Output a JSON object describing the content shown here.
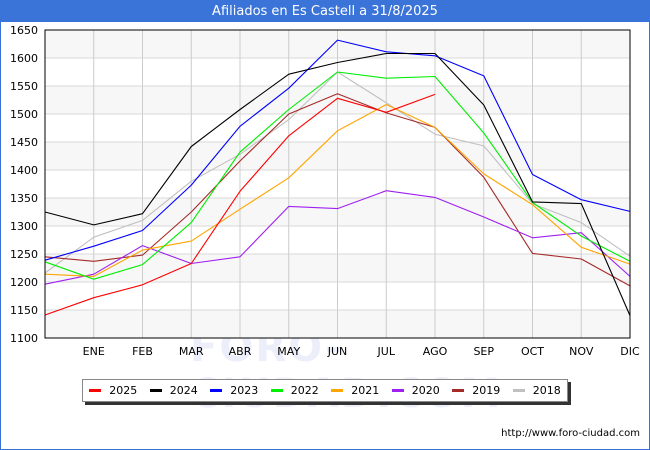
{
  "header": {
    "title": "Afiliados en Es Castell a 31/8/2025"
  },
  "watermark": "FORO-CIUDAD.COM",
  "footer": {
    "url": "http://www.foro-ciudad.com"
  },
  "chart_data": {
    "type": "line",
    "title": "Afiliados en Es Castell a 31/8/2025",
    "xlabel": "",
    "ylabel": "",
    "x": [
      "",
      "ENE",
      "FEB",
      "MAR",
      "ABR",
      "MAY",
      "JUN",
      "JUL",
      "AGO",
      "SEP",
      "OCT",
      "NOV",
      "DIC"
    ],
    "ylim": [
      1100,
      1650
    ],
    "yticks": [
      1100,
      1150,
      1200,
      1250,
      1300,
      1350,
      1400,
      1450,
      1500,
      1550,
      1600,
      1650
    ],
    "grid": true,
    "legend_position": "bottom",
    "series": [
      {
        "name": "2025",
        "color": "#ff0000",
        "values": [
          1141,
          1172,
          1195,
          1233,
          1362,
          1461,
          1528,
          1503,
          1535,
          null,
          null,
          null,
          null
        ]
      },
      {
        "name": "2024",
        "color": "#000000",
        "values": [
          1325,
          1302,
          1322,
          1442,
          1508,
          1571,
          1592,
          1608,
          1608,
          1516,
          1343,
          1340,
          1140
        ]
      },
      {
        "name": "2023",
        "color": "#0000ff",
        "values": [
          1239,
          1264,
          1292,
          1373,
          1478,
          1546,
          1632,
          1611,
          1604,
          1568,
          1392,
          1347,
          1326
        ]
      },
      {
        "name": "2022",
        "color": "#00ee00",
        "values": [
          1236,
          1205,
          1231,
          1306,
          1432,
          1508,
          1575,
          1564,
          1567,
          1466,
          1342,
          1282,
          1237
        ]
      },
      {
        "name": "2021",
        "color": "#ffa500",
        "values": [
          1214,
          1210,
          1257,
          1273,
          1330,
          1386,
          1470,
          1517,
          1476,
          1393,
          1338,
          1262,
          1232
        ]
      },
      {
        "name": "2020",
        "color": "#a020f0",
        "values": [
          1196,
          1214,
          1265,
          1233,
          1245,
          1335,
          1331,
          1363,
          1351,
          1316,
          1279,
          1288,
          1210
        ]
      },
      {
        "name": "2019",
        "color": "#a52a2a",
        "values": [
          1245,
          1237,
          1248,
          1325,
          1416,
          1500,
          1536,
          1502,
          1476,
          1387,
          1251,
          1241,
          1193
        ]
      },
      {
        "name": "2018",
        "color": "#c0c0c0",
        "values": [
          1216,
          1280,
          1310,
          1380,
          1428,
          1490,
          1575,
          1520,
          1464,
          1443,
          1340,
          1306,
          1246
        ]
      }
    ]
  }
}
